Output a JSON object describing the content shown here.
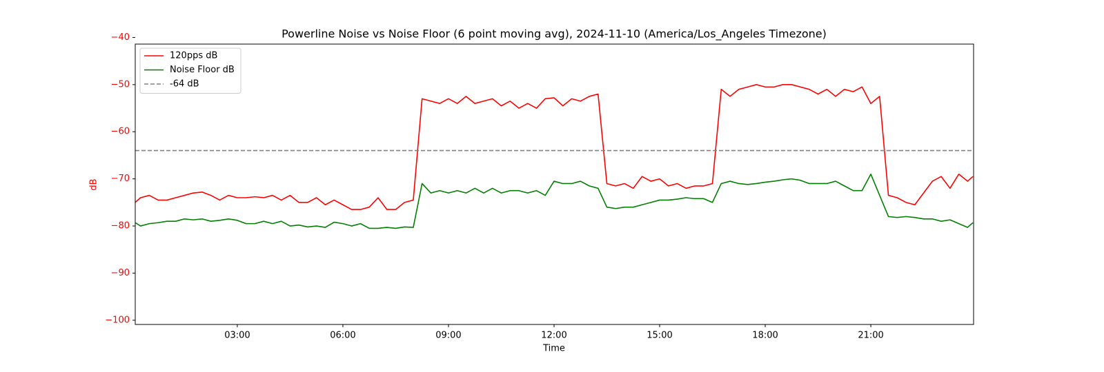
{
  "chart_data": {
    "type": "line",
    "title": "Powerline Noise vs Noise Floor (6 point moving avg), 2024-11-10 (America/Los_Angeles Timezone)",
    "xlabel": "Time",
    "ylabel": "dB",
    "ylabel_color": "#ff0000",
    "x": [
      0.1,
      0.25,
      0.5,
      0.75,
      1,
      1.25,
      1.5,
      1.75,
      2,
      2.25,
      2.5,
      2.75,
      3,
      3.25,
      3.5,
      3.75,
      4,
      4.25,
      4.5,
      4.75,
      5,
      5.25,
      5.5,
      5.75,
      6,
      6.25,
      6.5,
      6.75,
      7,
      7.25,
      7.5,
      7.75,
      8,
      8.25,
      8.5,
      8.75,
      9,
      9.25,
      9.5,
      9.75,
      10,
      10.25,
      10.5,
      10.75,
      11,
      11.25,
      11.5,
      11.75,
      12,
      12.25,
      12.5,
      12.75,
      13,
      13.25,
      13.5,
      13.75,
      14,
      14.25,
      14.5,
      14.75,
      15,
      15.25,
      15.5,
      15.75,
      16,
      16.25,
      16.5,
      16.75,
      17,
      17.25,
      17.5,
      17.75,
      18,
      18.25,
      18.5,
      18.75,
      19,
      19.25,
      19.5,
      19.75,
      20,
      20.25,
      20.5,
      20.75,
      21,
      21.25,
      21.5,
      21.75,
      22,
      22.25,
      22.5,
      22.75,
      23,
      23.25,
      23.5,
      23.75,
      23.9
    ],
    "series": [
      {
        "name": "120pps dB",
        "color": "#ff0000",
        "values": [
          -75,
          -74,
          -73.5,
          -74.5,
          -74.5,
          -74,
          -73.5,
          -73,
          -72.8,
          -73.5,
          -74.5,
          -73.5,
          -74,
          -74,
          -73.8,
          -74,
          -73.5,
          -74.5,
          -73.5,
          -75,
          -75,
          -74,
          -75.5,
          -74.5,
          -75.5,
          -76.5,
          -76.5,
          -76,
          -74,
          -76.5,
          -76.5,
          -75,
          -74.5,
          -53,
          -53.5,
          -54,
          -53,
          -54,
          -52.5,
          -54,
          -53.5,
          -53,
          -54.5,
          -53.5,
          -55,
          -54,
          -55,
          -53,
          -52.8,
          -54.5,
          -53,
          -53.5,
          -52.5,
          -52,
          -71,
          -71.5,
          -71,
          -72,
          -69.5,
          -70.5,
          -70,
          -71.5,
          -71,
          -72,
          -71.5,
          -71.5,
          -71,
          -51,
          -52.5,
          -51,
          -50.5,
          -50,
          -50.5,
          -50.5,
          -50,
          -50,
          -50.5,
          -51,
          -52,
          -51,
          -52.5,
          -51,
          -51.5,
          -50.5,
          -54,
          -52.5,
          -73.5,
          -74,
          -75,
          -75.5,
          -73,
          -70.5,
          -69.5,
          -72,
          -69,
          -70.5,
          -69.5
        ]
      },
      {
        "name": "Noise Floor dB",
        "color": "#008000",
        "values": [
          -79.3,
          -80,
          -79.5,
          -79.3,
          -79,
          -79,
          -78.5,
          -78.7,
          -78.5,
          -79,
          -78.8,
          -78.5,
          -78.8,
          -79.5,
          -79.5,
          -79,
          -79.5,
          -79,
          -80,
          -79.8,
          -80.2,
          -80,
          -80.3,
          -79.2,
          -79.5,
          -80,
          -79.5,
          -80.5,
          -80.5,
          -80.3,
          -80.5,
          -80.2,
          -80.3,
          -71,
          -73,
          -72.5,
          -73,
          -72.5,
          -73,
          -72,
          -73,
          -72,
          -73,
          -72.5,
          -72.5,
          -73,
          -72.5,
          -73.5,
          -70.5,
          -71,
          -71,
          -70.5,
          -71.5,
          -72,
          -76,
          -76.3,
          -76,
          -76,
          -75.5,
          -75,
          -74.5,
          -74.5,
          -74.3,
          -74,
          -74.2,
          -74.2,
          -75,
          -71,
          -70.5,
          -71,
          -71.2,
          -71,
          -70.7,
          -70.5,
          -70.2,
          -70,
          -70.3,
          -71,
          -71,
          -71,
          -70.5,
          -71.5,
          -72.5,
          -72.5,
          -69,
          -73.5,
          -78,
          -78.2,
          -78,
          -78.2,
          -78.5,
          -78.5,
          -79,
          -78.7,
          -79.5,
          -80.3,
          -79.3
        ]
      }
    ],
    "hlines": [
      {
        "name": "-64 dB",
        "value": -64,
        "color": "#808080",
        "dashed": true
      }
    ],
    "xlim": [
      0.1,
      23.92
    ],
    "ylim": [
      -100.9,
      -41.4
    ],
    "xticks": [
      {
        "value": 3,
        "label": "03:00"
      },
      {
        "value": 6,
        "label": "06:00"
      },
      {
        "value": 9,
        "label": "09:00"
      },
      {
        "value": 12,
        "label": "12:00"
      },
      {
        "value": 15,
        "label": "15:00"
      },
      {
        "value": 18,
        "label": "18:00"
      },
      {
        "value": 21,
        "label": "21:00"
      }
    ],
    "yticks": [
      {
        "value": -100,
        "label": "−100"
      },
      {
        "value": -90,
        "label": "−90"
      },
      {
        "value": -80,
        "label": "−80"
      },
      {
        "value": -70,
        "label": "−70"
      },
      {
        "value": -60,
        "label": "−60"
      },
      {
        "value": -50,
        "label": "−50"
      },
      {
        "value": -40,
        "label": "−40"
      }
    ],
    "ytick_color": "#ff0000",
    "legend": "upper left",
    "grid": false
  }
}
